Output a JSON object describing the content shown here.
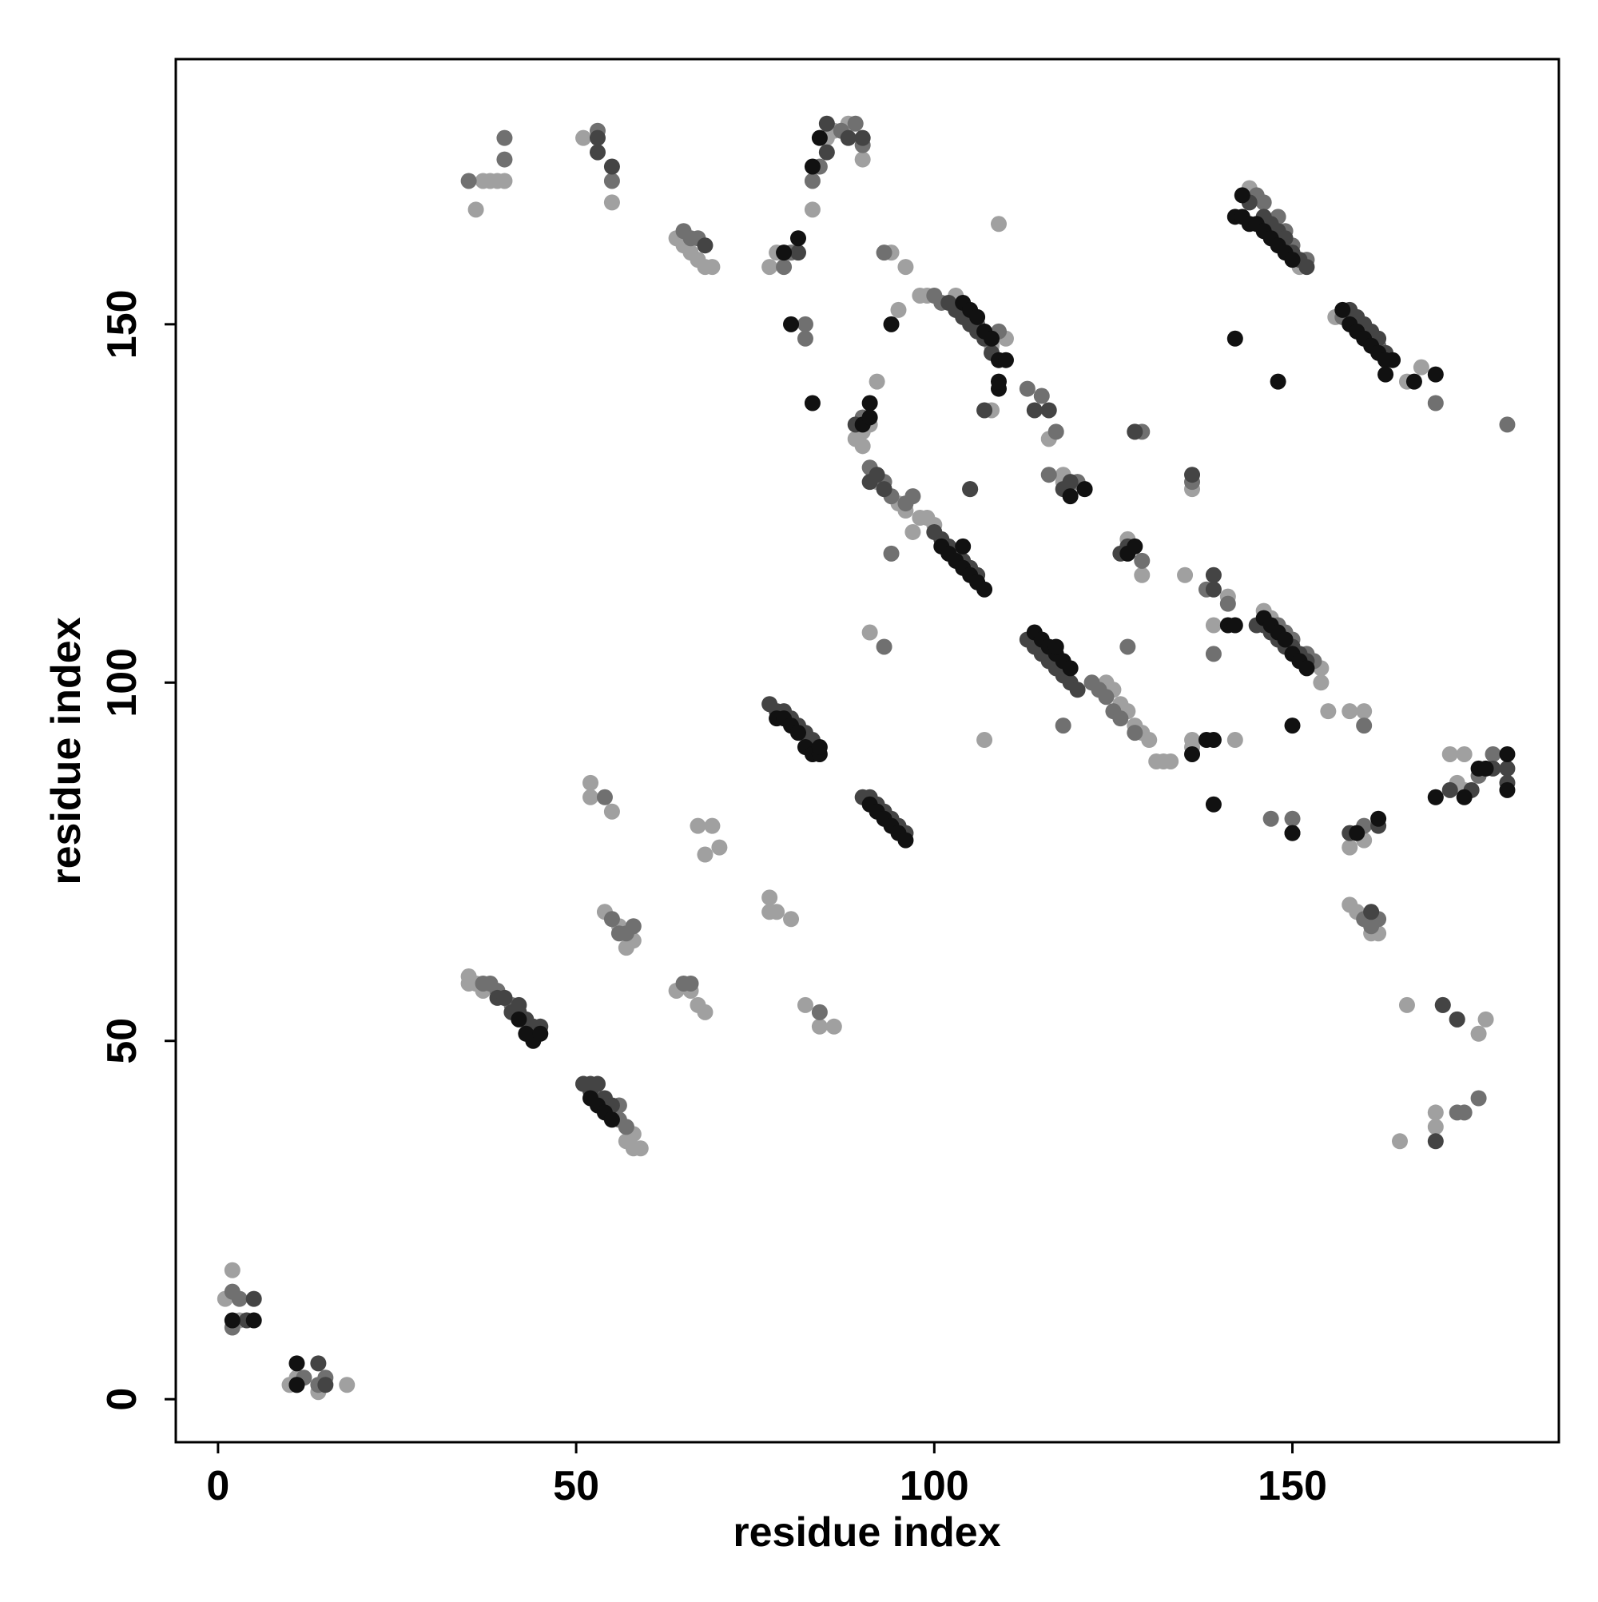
{
  "chart_data": {
    "type": "scatter",
    "xlabel": "residue index",
    "ylabel": "residue index",
    "xlim": [
      -5.9,
      187.2
    ],
    "ylim": [
      -6,
      187
    ],
    "xticks": [
      0,
      50,
      100,
      150
    ],
    "yticks": [
      0,
      50,
      100,
      150
    ],
    "series": [
      {
        "color": "#a0a0a0",
        "x": [
          1,
          2,
          3,
          10,
          14,
          18,
          11,
          35,
          36,
          37,
          35,
          36,
          37,
          38,
          39,
          40,
          51,
          55,
          64,
          65,
          66,
          67,
          68,
          69,
          77,
          78,
          52,
          52,
          55,
          67,
          69,
          68,
          70,
          77,
          77,
          78,
          80,
          54,
          56,
          57,
          58,
          64,
          66,
          67,
          68,
          82,
          84,
          86,
          57,
          58,
          59,
          58,
          57,
          85,
          86,
          88,
          90,
          83,
          89,
          90,
          91,
          92,
          94,
          95,
          96,
          90,
          92,
          95,
          96,
          98,
          99,
          100,
          97,
          98,
          99,
          103,
          104,
          108,
          109,
          108,
          110,
          107,
          91,
          124,
          125,
          126,
          127,
          128,
          129,
          130,
          131,
          132,
          133,
          128,
          127,
          129,
          118,
          116,
          118,
          136,
          135,
          136,
          139,
          141,
          142,
          136,
          146,
          147,
          154,
          154,
          155,
          151,
          144,
          158,
          160,
          158,
          160,
          158,
          159,
          162,
          161,
          166,
          168,
          156,
          172,
          174,
          173,
          174,
          170,
          165,
          170,
          170,
          176,
          177,
          166,
          171
        ],
        "values": [
          14,
          18,
          11,
          2,
          1,
          2,
          3,
          59,
          58,
          57,
          58,
          166,
          170,
          170,
          170,
          170,
          176,
          167,
          162,
          161,
          160,
          159,
          158,
          158,
          158,
          160,
          86,
          84,
          82,
          80,
          80,
          76,
          77,
          70,
          68,
          68,
          67,
          68,
          66,
          63,
          64,
          57,
          57,
          55,
          54,
          55,
          52,
          52,
          36,
          35,
          35,
          37,
          38,
          176,
          177,
          178,
          173,
          166,
          134,
          135,
          136,
          142,
          160,
          152,
          158,
          133,
          128,
          125,
          124,
          123,
          123,
          122,
          121,
          154,
          154,
          154,
          152,
          147,
          164,
          138,
          148,
          92,
          107,
          100,
          99,
          97,
          96,
          94,
          93,
          92,
          89,
          89,
          89,
          135,
          120,
          115,
          128,
          134,
          129,
          127,
          115,
          92,
          108,
          112,
          92,
          91,
          110,
          109,
          102,
          100,
          96,
          158,
          169,
          96,
          96,
          77,
          78,
          69,
          68,
          65,
          65,
          142,
          144,
          151,
          90,
          90,
          86,
          85,
          84,
          36,
          40,
          38,
          51,
          53,
          55,
          55
        ]
      },
      {
        "color": "#707070",
        "x": [
          2,
          3,
          2,
          12,
          15,
          14,
          38,
          39,
          40,
          41,
          37,
          35,
          40,
          40,
          53,
          55,
          54,
          65,
          66,
          67,
          80,
          79,
          82,
          82,
          83,
          84,
          87,
          89,
          90,
          51,
          53,
          54,
          55,
          56,
          56,
          57,
          55,
          56,
          57,
          58,
          65,
          66,
          84,
          93,
          90,
          91,
          93,
          94,
          96,
          97,
          100,
          101,
          105,
          106,
          109,
          94,
          93,
          105,
          118,
          116,
          117,
          120,
          121,
          115,
          113,
          122,
          123,
          124,
          125,
          126,
          128,
          129,
          127,
          136,
          129,
          138,
          139,
          141,
          148,
          149,
          150,
          152,
          153,
          147,
          150,
          145,
          146,
          148,
          149,
          150,
          152,
          157,
          159,
          160,
          162,
          163,
          170,
          180,
          160,
          160,
          161,
          162,
          160,
          173,
          176,
          174,
          173,
          176,
          178
        ],
        "values": [
          15,
          14,
          10,
          3,
          3,
          2,
          58,
          57,
          56,
          55,
          58,
          170,
          176,
          173,
          177,
          170,
          84,
          163,
          162,
          162,
          160,
          158,
          148,
          150,
          170,
          172,
          177,
          178,
          175,
          44,
          42,
          41,
          40,
          39,
          41,
          38,
          67,
          65,
          65,
          66,
          58,
          58,
          54,
          160,
          137,
          130,
          128,
          126,
          125,
          126,
          154,
          153,
          151,
          150,
          149,
          118,
          105,
          127,
          94,
          129,
          135,
          128,
          127,
          140,
          141,
          100,
          99,
          98,
          96,
          95,
          93,
          135,
          105,
          128,
          117,
          113,
          104,
          111,
          108,
          107,
          106,
          104,
          103,
          81,
          81,
          168,
          167,
          165,
          163,
          161,
          159,
          151,
          150,
          149,
          147,
          145,
          139,
          136,
          80,
          94,
          66,
          67,
          67,
          53,
          42,
          40,
          40,
          87,
          90
        ]
      },
      {
        "color": "#444444",
        "x": [
          4,
          5,
          11,
          14,
          15,
          39,
          40,
          41,
          42,
          43,
          44,
          45,
          42,
          53,
          55,
          53,
          68,
          51,
          52,
          53,
          54,
          55,
          52,
          77,
          78,
          79,
          80,
          81,
          82,
          83,
          90,
          91,
          92,
          93,
          94,
          95,
          96,
          81,
          85,
          85,
          88,
          90,
          89,
          91,
          92,
          93,
          100,
          101,
          102,
          103,
          104,
          105,
          106,
          105,
          102,
          103,
          104,
          105,
          106,
          107,
          108,
          107,
          113,
          114,
          115,
          116,
          117,
          118,
          119,
          120,
          114,
          116,
          118,
          119,
          126,
          127,
          128,
          136,
          139,
          139,
          145,
          146,
          147,
          148,
          149,
          150,
          151,
          152,
          144,
          146,
          147,
          148,
          149,
          150,
          151,
          152,
          158,
          159,
          160,
          161,
          162,
          163,
          158,
          161,
          162,
          150,
          172,
          175,
          180,
          180,
          178,
          170,
          171,
          173
        ],
        "values": [
          11,
          14,
          2,
          5,
          2,
          56,
          56,
          54,
          54,
          53,
          52,
          52,
          55,
          174,
          172,
          176,
          161,
          44,
          44,
          44,
          42,
          41,
          43,
          97,
          96,
          96,
          95,
          94,
          93,
          92,
          84,
          84,
          83,
          82,
          81,
          80,
          79,
          160,
          178,
          174,
          176,
          176,
          136,
          128,
          129,
          127,
          121,
          120,
          119,
          118,
          117,
          116,
          115,
          127,
          153,
          152,
          151,
          150,
          149,
          148,
          146,
          138,
          106,
          105,
          104,
          103,
          102,
          101,
          100,
          99,
          138,
          138,
          127,
          128,
          118,
          119,
          135,
          129,
          115,
          113,
          108,
          108,
          107,
          106,
          105,
          105,
          104,
          103,
          167,
          165,
          164,
          163,
          162,
          160,
          159,
          158,
          152,
          151,
          150,
          149,
          148,
          146,
          79,
          68,
          80,
          79,
          85,
          85,
          88,
          86,
          88,
          36,
          55,
          53
        ]
      },
      {
        "color": "#111111",
        "x": [
          2,
          5,
          11,
          11,
          43,
          44,
          45,
          42,
          52,
          53,
          54,
          55,
          78,
          79,
          80,
          81,
          82,
          83,
          84,
          84,
          91,
          92,
          93,
          94,
          95,
          96,
          79,
          81,
          80,
          83,
          84,
          83,
          90,
          91,
          91,
          94,
          101,
          102,
          103,
          104,
          105,
          106,
          107,
          104,
          104,
          105,
          106,
          107,
          108,
          109,
          110,
          109,
          109,
          114,
          115,
          116,
          117,
          118,
          119,
          117,
          127,
          128,
          121,
          119,
          136,
          138,
          139,
          139,
          141,
          142,
          146,
          147,
          148,
          149,
          150,
          151,
          152,
          150,
          150,
          142,
          143,
          143,
          144,
          145,
          146,
          147,
          148,
          149,
          150,
          142,
          148,
          157,
          158,
          159,
          160,
          161,
          162,
          163,
          164,
          163,
          167,
          170,
          159,
          162,
          176,
          180,
          180,
          177,
          170,
          174
        ],
        "values": [
          11,
          11,
          5,
          2,
          51,
          50,
          51,
          53,
          42,
          41,
          40,
          39,
          95,
          95,
          94,
          93,
          91,
          90,
          90,
          91,
          83,
          82,
          81,
          80,
          79,
          78,
          160,
          162,
          150,
          139,
          176,
          172,
          136,
          137,
          139,
          150,
          119,
          118,
          117,
          116,
          115,
          114,
          113,
          119,
          153,
          152,
          151,
          149,
          148,
          145,
          145,
          141,
          142,
          107,
          106,
          105,
          104,
          103,
          102,
          105,
          118,
          119,
          127,
          126,
          90,
          92,
          92,
          83,
          108,
          108,
          109,
          108,
          107,
          106,
          104,
          103,
          102,
          94,
          79,
          165,
          168,
          165,
          164,
          164,
          163,
          162,
          161,
          160,
          159,
          148,
          142,
          152,
          150,
          149,
          148,
          147,
          146,
          145,
          145,
          143,
          142,
          143,
          79,
          81,
          88,
          90,
          85,
          88,
          84,
          84
        ]
      }
    ]
  }
}
